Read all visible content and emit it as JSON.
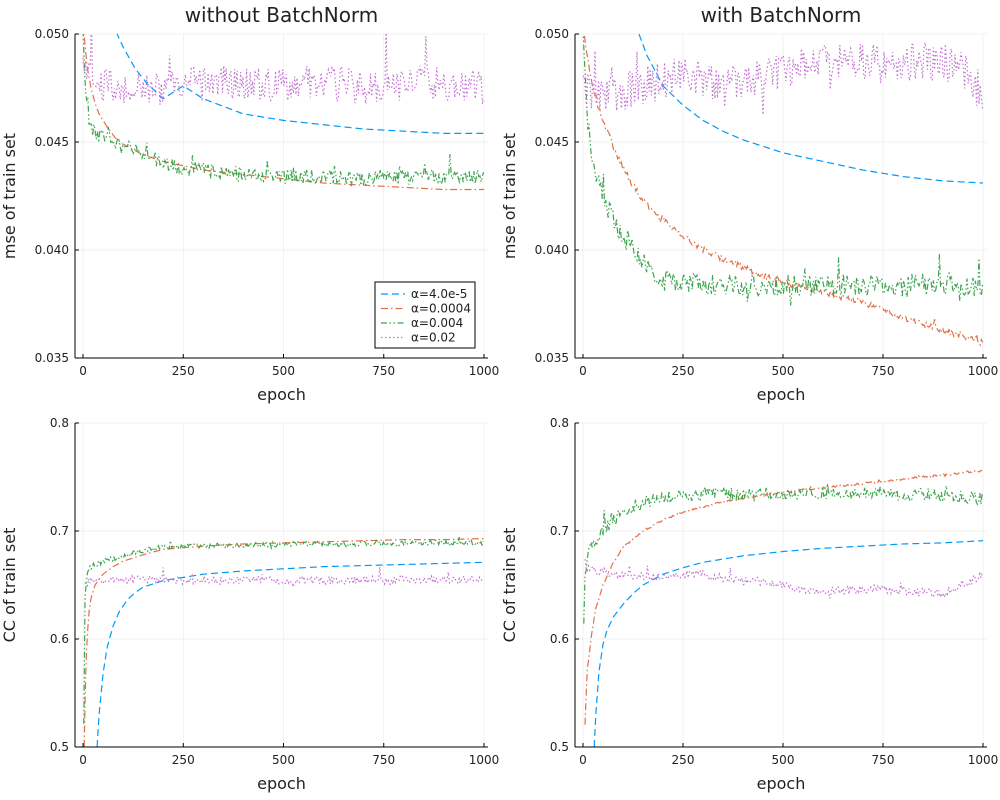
{
  "figure": {
    "legend": {
      "placement": "bottom-right of top-left panel",
      "entries": [
        "α=4.0e-5",
        "α=0.0004",
        "α=0.004",
        "α=0.02"
      ]
    }
  },
  "chart_data": [
    {
      "id": "mse_without_bn",
      "type": "line",
      "title": "without BatchNorm",
      "xlabel": "epoch",
      "ylabel": "mse of train set",
      "xlim": [
        -20,
        1010
      ],
      "ylim": [
        0.035,
        0.05
      ],
      "xticks": [
        0,
        250,
        500,
        750,
        1000
      ],
      "xtick_labels": [
        "0",
        "250",
        "500",
        "750",
        "1000"
      ],
      "yticks": [
        0.035,
        0.04,
        0.045,
        0.05
      ],
      "ytick_labels": [
        "0.035",
        "0.040",
        "0.045",
        "0.050"
      ],
      "grid": true,
      "series": [
        {
          "name": "α=4.0e-5",
          "color": "#009AFA",
          "dash": "dash",
          "x": [
            40,
            60,
            80,
            100,
            130,
            160,
            200,
            250,
            300,
            400,
            500,
            600,
            700,
            800,
            900,
            1000
          ],
          "y": [
            0.0525,
            0.0512,
            0.0502,
            0.0494,
            0.0484,
            0.0477,
            0.047,
            0.0476,
            0.047,
            0.0463,
            0.046,
            0.0458,
            0.0456,
            0.0455,
            0.0454,
            0.0454
          ]
        },
        {
          "name": "α=0.0004",
          "color": "#E36F47",
          "dash": "dashdot",
          "x": [
            0,
            10,
            20,
            30,
            40,
            60,
            80,
            100,
            150,
            200,
            250,
            300,
            400,
            500,
            600,
            700,
            800,
            900,
            1000
          ],
          "y": [
            0.0505,
            0.0485,
            0.0475,
            0.0468,
            0.0463,
            0.0457,
            0.0452,
            0.0449,
            0.0444,
            0.0441,
            0.0439,
            0.0437,
            0.0435,
            0.0433,
            0.0431,
            0.043,
            0.0429,
            0.0428,
            0.0428
          ]
        },
        {
          "name": "α=0.004",
          "color": "#3EA44E",
          "dash": "dashdotdot",
          "x": [
            0,
            10,
            20,
            30,
            50,
            75,
            100,
            125,
            150,
            200,
            250,
            300,
            350,
            400,
            450,
            500,
            550,
            600,
            650,
            700,
            750,
            800,
            850,
            900,
            950,
            1000
          ],
          "y": [
            0.05,
            0.0462,
            0.0458,
            0.0454,
            0.0452,
            0.045,
            0.0448,
            0.0446,
            0.0445,
            0.044,
            0.0438,
            0.0437,
            0.0436,
            0.0435,
            0.0434,
            0.0434,
            0.0434,
            0.0434,
            0.0433,
            0.0433,
            0.0434,
            0.0433,
            0.0434,
            0.0434,
            0.0434,
            0.0434
          ],
          "noise": 0.00035
        },
        {
          "name": "α=0.02",
          "color": "#C271D2",
          "dash": "dot",
          "x": [
            0,
            20,
            50,
            100,
            150,
            200,
            250,
            300,
            350,
            400,
            450,
            500,
            550,
            600,
            650,
            700,
            750,
            800,
            850,
            900,
            950,
            1000
          ],
          "y": [
            0.0485,
            0.0478,
            0.0476,
            0.0474,
            0.0476,
            0.0475,
            0.0477,
            0.0476,
            0.0478,
            0.0477,
            0.0476,
            0.0477,
            0.0478,
            0.0476,
            0.0477,
            0.0475,
            0.0477,
            0.0476,
            0.0478,
            0.0476,
            0.0477,
            0.0475
          ],
          "noise": 0.0008
        }
      ]
    },
    {
      "id": "mse_with_bn",
      "type": "line",
      "title": "with BatchNorm",
      "xlabel": "epoch",
      "ylabel": "mse of train set",
      "xlim": [
        -20,
        1010
      ],
      "ylim": [
        0.035,
        0.05
      ],
      "xticks": [
        0,
        250,
        500,
        750,
        1000
      ],
      "xtick_labels": [
        "0",
        "250",
        "500",
        "750",
        "1000"
      ],
      "yticks": [
        0.035,
        0.04,
        0.045,
        0.05
      ],
      "ytick_labels": [
        "0.035",
        "0.040",
        "0.045",
        "0.050"
      ],
      "grid": true,
      "series": [
        {
          "name": "α=4.0e-5",
          "color": "#009AFA",
          "dash": "dash",
          "x": [
            140,
            160,
            200,
            250,
            300,
            350,
            400,
            500,
            600,
            700,
            800,
            900,
            1000
          ],
          "y": [
            0.05,
            0.049,
            0.0476,
            0.0467,
            0.046,
            0.0455,
            0.0451,
            0.0445,
            0.0441,
            0.0437,
            0.0434,
            0.0432,
            0.0431
          ]
        },
        {
          "name": "α=0.0004",
          "color": "#E36F47",
          "dash": "dashdot",
          "x": [
            0,
            10,
            20,
            40,
            60,
            80,
            100,
            125,
            150,
            200,
            250,
            300,
            350,
            400,
            450,
            500,
            550,
            600,
            650,
            700,
            750,
            800,
            850,
            900,
            950,
            1000
          ],
          "y": [
            0.0505,
            0.049,
            0.048,
            0.0465,
            0.0455,
            0.0446,
            0.0438,
            0.043,
            0.0423,
            0.0414,
            0.0407,
            0.04,
            0.0396,
            0.0392,
            0.0388,
            0.0385,
            0.0383,
            0.0381,
            0.0378,
            0.0376,
            0.0372,
            0.0369,
            0.0366,
            0.0363,
            0.036,
            0.0357
          ],
          "noise": 0.00015
        },
        {
          "name": "α=0.004",
          "color": "#3EA44E",
          "dash": "dashdotdot",
          "x": [
            0,
            10,
            20,
            40,
            60,
            80,
            100,
            125,
            150,
            175,
            200,
            250,
            300,
            350,
            400,
            450,
            500,
            550,
            600,
            650,
            700,
            750,
            800,
            850,
            900,
            950,
            1000
          ],
          "y": [
            0.05,
            0.0462,
            0.0448,
            0.043,
            0.042,
            0.0412,
            0.0406,
            0.04,
            0.0395,
            0.039,
            0.0387,
            0.0385,
            0.0384,
            0.0384,
            0.0384,
            0.0383,
            0.0384,
            0.0384,
            0.0383,
            0.0384,
            0.0383,
            0.0384,
            0.0383,
            0.0384,
            0.0384,
            0.0383,
            0.0384
          ],
          "noise": 0.0005
        },
        {
          "name": "α=0.02",
          "color": "#C271D2",
          "dash": "dot",
          "x": [
            0,
            20,
            50,
            100,
            150,
            200,
            250,
            300,
            350,
            400,
            450,
            500,
            550,
            600,
            650,
            700,
            750,
            800,
            850,
            900,
            950,
            1000
          ],
          "y": [
            0.0475,
            0.0472,
            0.047,
            0.0473,
            0.0476,
            0.0478,
            0.0481,
            0.0478,
            0.0475,
            0.0478,
            0.048,
            0.0484,
            0.0487,
            0.0488,
            0.0489,
            0.0487,
            0.0486,
            0.0486,
            0.0488,
            0.0487,
            0.0483,
            0.0472
          ],
          "noise": 0.0009
        }
      ]
    },
    {
      "id": "cc_without_bn",
      "type": "line",
      "title": "",
      "xlabel": "epoch",
      "ylabel": "CC of train set",
      "xlim": [
        -20,
        1010
      ],
      "ylim": [
        0.5,
        0.8
      ],
      "xticks": [
        0,
        250,
        500,
        750,
        1000
      ],
      "xtick_labels": [
        "0",
        "250",
        "500",
        "750",
        "1000"
      ],
      "yticks": [
        0.5,
        0.6,
        0.7,
        0.8
      ],
      "ytick_labels": [
        "0.5",
        "0.6",
        "0.7",
        "0.8"
      ],
      "grid": true,
      "series": [
        {
          "name": "α=4.0e-5",
          "color": "#009AFA",
          "dash": "dash",
          "x": [
            35,
            40,
            50,
            60,
            75,
            90,
            110,
            130,
            150,
            175,
            200,
            250,
            300,
            400,
            500,
            600,
            700,
            800,
            900,
            1000
          ],
          "y": [
            0.5,
            0.53,
            0.568,
            0.592,
            0.612,
            0.625,
            0.636,
            0.643,
            0.648,
            0.651,
            0.654,
            0.657,
            0.66,
            0.663,
            0.665,
            0.667,
            0.668,
            0.669,
            0.67,
            0.671
          ]
        },
        {
          "name": "α=0.0004",
          "color": "#E36F47",
          "dash": "dashdot",
          "x": [
            3,
            6,
            10,
            15,
            20,
            30,
            50,
            75,
            100,
            150,
            200,
            300,
            400,
            500,
            600,
            700,
            800,
            900,
            1000
          ],
          "y": [
            0.5,
            0.56,
            0.6,
            0.625,
            0.638,
            0.65,
            0.66,
            0.667,
            0.672,
            0.678,
            0.683,
            0.686,
            0.688,
            0.689,
            0.69,
            0.691,
            0.692,
            0.692,
            0.693
          ]
        },
        {
          "name": "α=0.004",
          "color": "#3EA44E",
          "dash": "dashdotdot",
          "x": [
            2,
            5,
            10,
            15,
            25,
            40,
            60,
            100,
            150,
            200,
            250,
            300,
            400,
            500,
            600,
            700,
            800,
            900,
            1000
          ],
          "y": [
            0.52,
            0.64,
            0.66,
            0.665,
            0.668,
            0.67,
            0.673,
            0.677,
            0.682,
            0.685,
            0.686,
            0.686,
            0.687,
            0.688,
            0.688,
            0.688,
            0.689,
            0.689,
            0.689
          ],
          "noise": 0.0025
        },
        {
          "name": "α=0.02",
          "color": "#C271D2",
          "dash": "dot",
          "x": [
            5,
            10,
            20,
            50,
            100,
            150,
            200,
            250,
            300,
            350,
            400,
            450,
            500,
            550,
            600,
            650,
            700,
            750,
            800,
            850,
            900,
            950,
            1000
          ],
          "y": [
            0.65,
            0.652,
            0.654,
            0.654,
            0.655,
            0.655,
            0.655,
            0.654,
            0.655,
            0.654,
            0.655,
            0.655,
            0.654,
            0.655,
            0.654,
            0.654,
            0.655,
            0.654,
            0.655,
            0.655,
            0.654,
            0.655,
            0.655
          ],
          "noise": 0.0035
        }
      ]
    },
    {
      "id": "cc_with_bn",
      "type": "line",
      "title": "",
      "xlabel": "epoch",
      "ylabel": "CC of train set",
      "xlim": [
        -20,
        1010
      ],
      "ylim": [
        0.5,
        0.8
      ],
      "xticks": [
        0,
        250,
        500,
        750,
        1000
      ],
      "xtick_labels": [
        "0",
        "250",
        "500",
        "750",
        "1000"
      ],
      "yticks": [
        0.5,
        0.6,
        0.7,
        0.8
      ],
      "ytick_labels": [
        "0.5",
        "0.6",
        "0.7",
        "0.8"
      ],
      "grid": true,
      "series": [
        {
          "name": "α=4.0e-5",
          "color": "#009AFA",
          "dash": "dash",
          "x": [
            28,
            32,
            40,
            50,
            60,
            75,
            100,
            125,
            150,
            200,
            250,
            300,
            400,
            500,
            600,
            700,
            800,
            900,
            1000
          ],
          "y": [
            0.5,
            0.53,
            0.57,
            0.595,
            0.608,
            0.62,
            0.632,
            0.642,
            0.65,
            0.66,
            0.666,
            0.671,
            0.677,
            0.681,
            0.684,
            0.686,
            0.688,
            0.689,
            0.691
          ]
        },
        {
          "name": "α=0.0004",
          "color": "#E36F47",
          "dash": "dashdot",
          "x": [
            5,
            10,
            20,
            30,
            50,
            75,
            100,
            150,
            200,
            250,
            300,
            350,
            400,
            450,
            500,
            550,
            600,
            650,
            700,
            750,
            800,
            850,
            900,
            950,
            1000
          ],
          "y": [
            0.52,
            0.57,
            0.6,
            0.625,
            0.65,
            0.67,
            0.685,
            0.7,
            0.71,
            0.717,
            0.722,
            0.727,
            0.73,
            0.733,
            0.736,
            0.738,
            0.74,
            0.742,
            0.744,
            0.746,
            0.748,
            0.75,
            0.752,
            0.754,
            0.756
          ],
          "noise": 0.001
        },
        {
          "name": "α=0.004",
          "color": "#3EA44E",
          "dash": "dashdotdot",
          "x": [
            2,
            5,
            10,
            20,
            40,
            60,
            80,
            100,
            125,
            150,
            175,
            200,
            250,
            300,
            350,
            400,
            450,
            500,
            550,
            600,
            650,
            700,
            750,
            800,
            850,
            900,
            950,
            1000
          ],
          "y": [
            0.61,
            0.66,
            0.675,
            0.685,
            0.696,
            0.704,
            0.711,
            0.717,
            0.722,
            0.726,
            0.729,
            0.731,
            0.733,
            0.734,
            0.735,
            0.734,
            0.735,
            0.734,
            0.735,
            0.735,
            0.734,
            0.736,
            0.735,
            0.733,
            0.734,
            0.733,
            0.732,
            0.73
          ],
          "noise": 0.006
        },
        {
          "name": "α=0.02",
          "color": "#C271D2",
          "dash": "dot",
          "x": [
            5,
            10,
            20,
            50,
            100,
            150,
            200,
            250,
            300,
            350,
            400,
            450,
            500,
            550,
            600,
            650,
            700,
            750,
            800,
            850,
            900,
            950,
            1000
          ],
          "y": [
            0.665,
            0.664,
            0.663,
            0.662,
            0.66,
            0.658,
            0.657,
            0.66,
            0.661,
            0.657,
            0.654,
            0.653,
            0.65,
            0.645,
            0.645,
            0.645,
            0.646,
            0.646,
            0.645,
            0.643,
            0.642,
            0.65,
            0.66
          ],
          "noise": 0.004
        }
      ]
    }
  ]
}
